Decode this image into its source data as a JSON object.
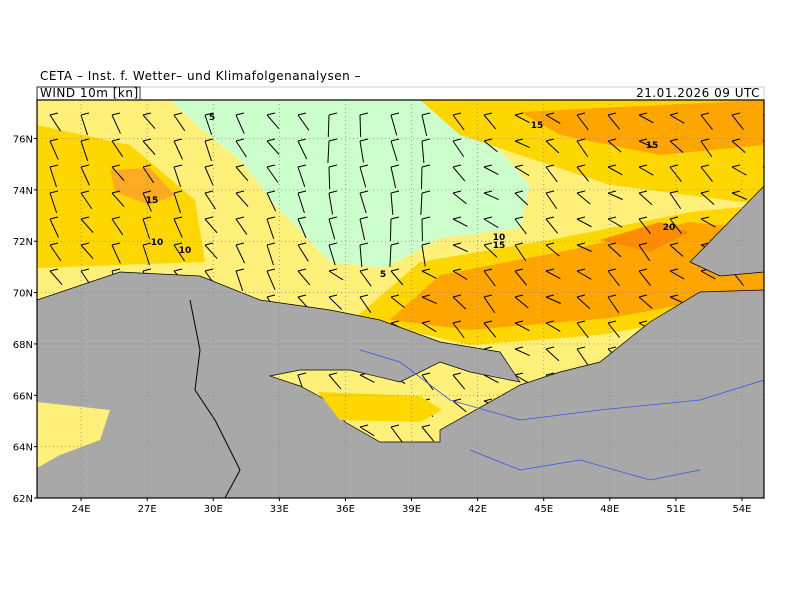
{
  "map": {
    "header": "CETA – Inst. f. Wetter– und Klimafolgenanalysen –",
    "field_label": "WIND 10m [kn]",
    "datetime": "21.01.2026 09 UTC",
    "lat_range": [
      62,
      77.5
    ],
    "lon_range": [
      22,
      55
    ],
    "lat_ticks": [
      {
        "value": 76,
        "label": "76N"
      },
      {
        "value": 74,
        "label": "74N"
      },
      {
        "value": 72,
        "label": "72N"
      },
      {
        "value": 70,
        "label": "70N"
      },
      {
        "value": 68,
        "label": "68N"
      },
      {
        "value": 66,
        "label": "66N"
      },
      {
        "value": 64,
        "label": "64N"
      },
      {
        "value": 62,
        "label": "62N"
      }
    ],
    "lon_ticks": [
      {
        "value": 24,
        "label": "24E"
      },
      {
        "value": 27,
        "label": "27E"
      },
      {
        "value": 30,
        "label": "30E"
      },
      {
        "value": 33,
        "label": "33E"
      },
      {
        "value": 36,
        "label": "36E"
      },
      {
        "value": 39,
        "label": "39E"
      },
      {
        "value": 42,
        "label": "42E"
      },
      {
        "value": 45,
        "label": "45E"
      },
      {
        "value": 48,
        "label": "48E"
      },
      {
        "value": 51,
        "label": "51E"
      },
      {
        "value": 54,
        "label": "54E"
      }
    ],
    "contour_labels": [
      "5",
      "5",
      "15",
      "15",
      "15",
      "10",
      "10",
      "10",
      "15",
      "20"
    ]
  }
}
